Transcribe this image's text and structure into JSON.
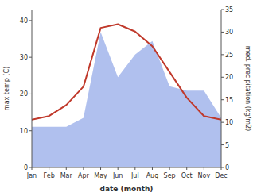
{
  "chart_data": {
    "type": "line",
    "categories": [
      "Jan",
      "Feb",
      "Mar",
      "Apr",
      "May",
      "Jun",
      "Jul",
      "Aug",
      "Sep",
      "Oct",
      "Nov",
      "Dec"
    ],
    "xlabel": "date (month)",
    "ylabel": "max temp (C)",
    "y2label": "med. precipitation (kg/m2)",
    "series": [
      {
        "type": "line",
        "color": "#c0392b",
        "values": [
          13,
          14,
          17,
          22,
          38,
          39,
          37,
          33,
          26,
          19,
          14,
          13
        ]
      },
      {
        "type": "area",
        "color": "#b0c0ee",
        "axis": "y2",
        "values": [
          9,
          9,
          9,
          11,
          30,
          20,
          25,
          28,
          18,
          17,
          17,
          11
        ]
      }
    ],
    "ylim": [
      0,
      43
    ],
    "yticks": [
      0,
      10,
      20,
      30,
      40
    ],
    "y2lim": [
      0,
      35
    ],
    "y2ticks": [
      0,
      5,
      10,
      15,
      20,
      25,
      30,
      35
    ],
    "grid": false
  }
}
